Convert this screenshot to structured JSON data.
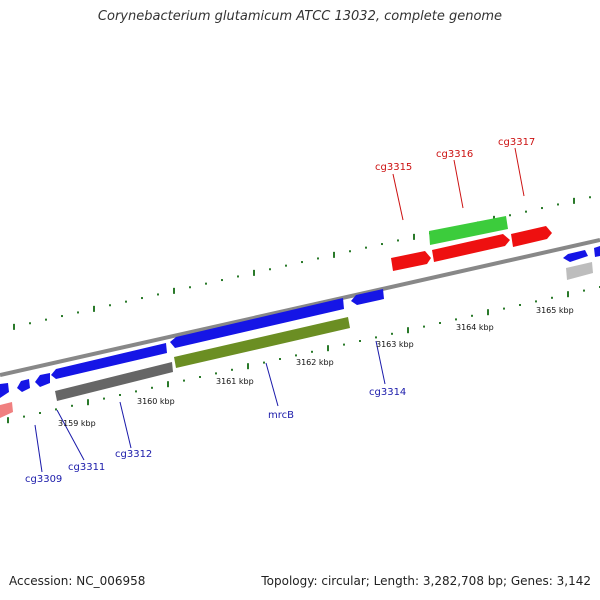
{
  "title": "Corynebacterium glutamicum ATCC 13032, complete genome",
  "footer": {
    "accession": "Accession: NC_006958",
    "summary": "Topology: circular; Length: 3,282,708 bp; Genes: 3,142"
  },
  "colors": {
    "forward_strand": "#1515e6",
    "gene_red": "#ee1010",
    "gene_green": "#3ccc3c",
    "gene_olive": "#6b8e23",
    "gene_gray": "#666666",
    "gene_lightgray": "#bdbdbd",
    "gene_pink": "#f08080",
    "ticks_green": "#2a7a2a",
    "label_blue": "#1a1aaa",
    "label_red": "#cc1111",
    "backbone": "#888888"
  },
  "scale_labels": [
    "3159 kbp",
    "3160 kbp",
    "3161 kbp",
    "3162 kbp",
    "3163 kbp",
    "3164 kbp",
    "3165 kbp"
  ],
  "gene_labels_below": [
    "cg3309",
    "cg3311",
    "cg3312",
    "mrcB",
    "cg3314"
  ],
  "gene_labels_above": [
    "cg3315",
    "cg3316",
    "cg3317"
  ]
}
